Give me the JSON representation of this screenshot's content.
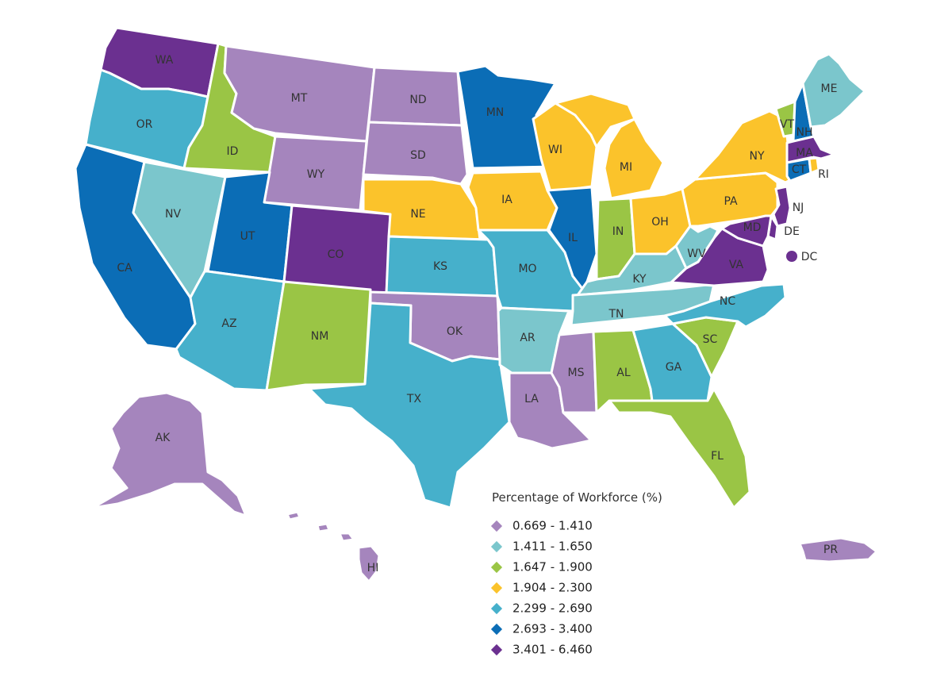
{
  "map": {
    "legend_title": "Percentage of Workforce (%)",
    "legend": [
      {
        "id": "c1",
        "label": "0.669 - 1.410",
        "color": "#a585bd"
      },
      {
        "id": "c2",
        "label": "1.411 - 1.650",
        "color": "#7bc6cc"
      },
      {
        "id": "c3",
        "label": "1.647 - 1.900",
        "color": "#9ac545"
      },
      {
        "id": "c4",
        "label": "1.904 - 2.300",
        "color": "#fbc32b"
      },
      {
        "id": "c5",
        "label": "2.299 - 2.690",
        "color": "#46b0cb"
      },
      {
        "id": "c6",
        "label": "2.693 - 3.400",
        "color": "#0b6db6"
      },
      {
        "id": "c7",
        "label": "3.401 - 6.460",
        "color": "#6b3090"
      }
    ],
    "states": [
      {
        "abbr": "WA",
        "cls": "c7"
      },
      {
        "abbr": "OR",
        "cls": "c5"
      },
      {
        "abbr": "CA",
        "cls": "c6"
      },
      {
        "abbr": "ID",
        "cls": "c3"
      },
      {
        "abbr": "NV",
        "cls": "c2"
      },
      {
        "abbr": "MT",
        "cls": "c1"
      },
      {
        "abbr": "WY",
        "cls": "c1"
      },
      {
        "abbr": "UT",
        "cls": "c6"
      },
      {
        "abbr": "AZ",
        "cls": "c5"
      },
      {
        "abbr": "CO",
        "cls": "c7"
      },
      {
        "abbr": "NM",
        "cls": "c3"
      },
      {
        "abbr": "ND",
        "cls": "c1"
      },
      {
        "abbr": "SD",
        "cls": "c1"
      },
      {
        "abbr": "NE",
        "cls": "c4"
      },
      {
        "abbr": "KS",
        "cls": "c5"
      },
      {
        "abbr": "OK",
        "cls": "c1"
      },
      {
        "abbr": "TX",
        "cls": "c5"
      },
      {
        "abbr": "MN",
        "cls": "c6"
      },
      {
        "abbr": "IA",
        "cls": "c4"
      },
      {
        "abbr": "MO",
        "cls": "c5"
      },
      {
        "abbr": "AR",
        "cls": "c2"
      },
      {
        "abbr": "LA",
        "cls": "c1"
      },
      {
        "abbr": "WI",
        "cls": "c4"
      },
      {
        "abbr": "IL",
        "cls": "c6"
      },
      {
        "abbr": "MI",
        "cls": "c4"
      },
      {
        "abbr": "IN",
        "cls": "c3"
      },
      {
        "abbr": "OH",
        "cls": "c4"
      },
      {
        "abbr": "KY",
        "cls": "c2"
      },
      {
        "abbr": "TN",
        "cls": "c2"
      },
      {
        "abbr": "MS",
        "cls": "c1"
      },
      {
        "abbr": "AL",
        "cls": "c3"
      },
      {
        "abbr": "GA",
        "cls": "c5"
      },
      {
        "abbr": "FL",
        "cls": "c3"
      },
      {
        "abbr": "SC",
        "cls": "c3"
      },
      {
        "abbr": "NC",
        "cls": "c5"
      },
      {
        "abbr": "VA",
        "cls": "c7"
      },
      {
        "abbr": "WV",
        "cls": "c2"
      },
      {
        "abbr": "PA",
        "cls": "c4"
      },
      {
        "abbr": "NY",
        "cls": "c4"
      },
      {
        "abbr": "VT",
        "cls": "c3"
      },
      {
        "abbr": "NH",
        "cls": "c6"
      },
      {
        "abbr": "ME",
        "cls": "c2"
      },
      {
        "abbr": "MA",
        "cls": "c7"
      },
      {
        "abbr": "CT",
        "cls": "c6"
      },
      {
        "abbr": "RI",
        "cls": "c4"
      },
      {
        "abbr": "NJ",
        "cls": "c7"
      },
      {
        "abbr": "DE",
        "cls": "c7"
      },
      {
        "abbr": "MD",
        "cls": "c7"
      },
      {
        "abbr": "DC",
        "cls": "c7"
      },
      {
        "abbr": "AK",
        "cls": "c1"
      },
      {
        "abbr": "HI",
        "cls": "c1"
      },
      {
        "abbr": "PR",
        "cls": "c1"
      }
    ]
  }
}
